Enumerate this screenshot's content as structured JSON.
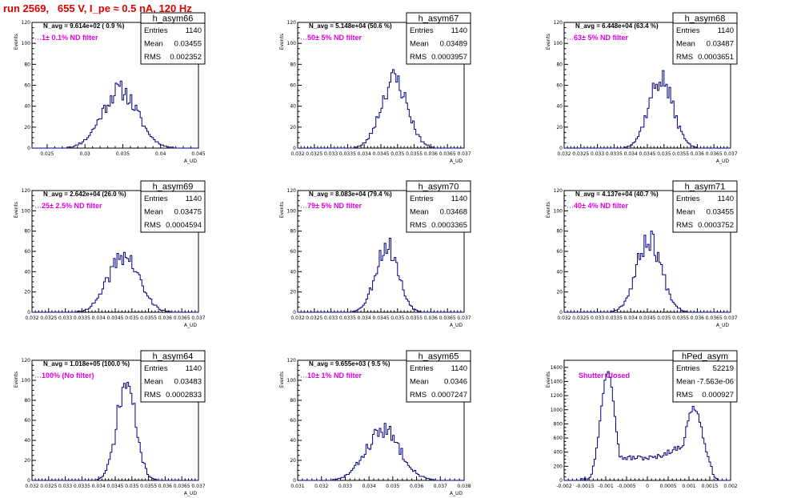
{
  "header": {
    "title": "run 2569,   655 V, I_pe ≈ 0.5 nA, 120 Hz"
  },
  "colors": {
    "histogram": "#000080",
    "title": "#e00000",
    "filter_label": "#e000e0"
  },
  "chart_data": [
    {
      "type": "histogram",
      "name": "h_asym66",
      "ylabel": "Events",
      "xlabel": "A_UD",
      "ylim": [
        0,
        120
      ],
      "yticks": [
        0,
        20,
        40,
        60,
        80,
        100,
        120
      ],
      "xlim": [
        0.023,
        0.045
      ],
      "xticks": [
        0.025,
        0.03,
        0.035,
        0.04,
        0.045
      ],
      "xtick_labels": [
        "0.025",
        "0.03",
        "0.035",
        "0.04",
        "0.045"
      ],
      "annotation_navg": "N_avg = 9.614e+02 ( 0.9 %)",
      "annotation_filter": "1± 0.1% ND filter",
      "stats": {
        "entries": "1140",
        "mean": "0.03455",
        "rms": "0.002352"
      },
      "peak_x": 0.0346,
      "width": 0.00235,
      "peak_y": 55,
      "seed": 11
    },
    {
      "type": "histogram",
      "name": "h_asym67",
      "ylabel": "Events",
      "xlabel": "A_UD",
      "ylim": [
        0,
        120
      ],
      "yticks": [
        0,
        20,
        40,
        60,
        80,
        100,
        120
      ],
      "xlim": [
        0.032,
        0.037
      ],
      "xticks": [
        0.032,
        0.0325,
        0.033,
        0.0335,
        0.034,
        0.0345,
        0.035,
        0.0355,
        0.036,
        0.0365,
        0.037
      ],
      "xtick_labels": [
        "0.032",
        "0.0325",
        "0.033",
        "0.0335",
        "0.034",
        "0.0345",
        "0.035",
        "0.0355",
        "0.036",
        "0.0365",
        "0.037"
      ],
      "annotation_navg": "N_avg = 5.148e+04 (50.6 %)",
      "annotation_filter": "50± 5% ND filter",
      "stats": {
        "entries": "1140",
        "mean": "0.03489",
        "rms": "0.0003957"
      },
      "peak_x": 0.0349,
      "width": 0.000396,
      "peak_y": 66,
      "seed": 23
    },
    {
      "type": "histogram",
      "name": "h_asym68",
      "ylabel": "Events",
      "xlabel": "A_UD",
      "ylim": [
        0,
        120
      ],
      "yticks": [
        0,
        20,
        40,
        60,
        80,
        100,
        120
      ],
      "xlim": [
        0.032,
        0.037
      ],
      "xticks": [
        0.032,
        0.0325,
        0.033,
        0.0335,
        0.034,
        0.0345,
        0.035,
        0.0355,
        0.036,
        0.0365,
        0.037
      ],
      "xtick_labels": [
        "0.032",
        "0.0325",
        "0.033",
        "0.0335",
        "0.034",
        "0.0345",
        "0.035",
        "0.0355",
        "0.036",
        "0.0365",
        "0.037"
      ],
      "annotation_navg": "N_avg = 6.448e+04 (63.4 %)",
      "annotation_filter": "63± 5% ND filter",
      "stats": {
        "entries": "1140",
        "mean": "0.03487",
        "rms": "0.0003651"
      },
      "peak_x": 0.0349,
      "width": 0.000365,
      "peak_y": 66,
      "seed": 37
    },
    {
      "type": "histogram",
      "name": "h_asym69",
      "ylabel": "Events",
      "xlabel": "A_UD",
      "ylim": [
        0,
        120
      ],
      "yticks": [
        0,
        20,
        40,
        60,
        80,
        100,
        120
      ],
      "xlim": [
        0.032,
        0.037
      ],
      "xticks": [
        0.032,
        0.0325,
        0.033,
        0.0335,
        0.034,
        0.0345,
        0.035,
        0.0355,
        0.036,
        0.0365,
        0.037
      ],
      "xtick_labels": [
        "0.032",
        "0.0325",
        "0.033",
        "0.0335",
        "0.034",
        "0.0345",
        "0.035",
        "0.0355",
        "0.036",
        "0.0365",
        "0.037"
      ],
      "annotation_navg": "N_avg = 2.642e+04 (26.0 %)",
      "annotation_filter": "25± 2.5% ND filter",
      "stats": {
        "entries": "1140",
        "mean": "0.03475",
        "rms": "0.0004594"
      },
      "peak_x": 0.03475,
      "width": 0.00046,
      "peak_y": 56,
      "seed": 41
    },
    {
      "type": "histogram",
      "name": "h_asym70",
      "ylabel": "Events",
      "xlabel": "A_UD",
      "ylim": [
        0,
        120
      ],
      "yticks": [
        0,
        20,
        40,
        60,
        80,
        100,
        120
      ],
      "xlim": [
        0.032,
        0.037
      ],
      "xticks": [
        0.032,
        0.0325,
        0.033,
        0.0335,
        0.034,
        0.0345,
        0.035,
        0.0355,
        0.036,
        0.0365,
        0.037
      ],
      "xtick_labels": [
        "0.032",
        "0.0325",
        "0.033",
        "0.0335",
        "0.034",
        "0.0345",
        "0.035",
        "0.0355",
        "0.036",
        "0.0365",
        "0.037"
      ],
      "annotation_navg": "N_avg = 8.083e+04 (79.4 %)",
      "annotation_filter": "79± 5% ND filter",
      "stats": {
        "entries": "1140",
        "mean": "0.03468",
        "rms": "0.0003365"
      },
      "peak_x": 0.03468,
      "width": 0.000336,
      "peak_y": 66,
      "seed": 53
    },
    {
      "type": "histogram",
      "name": "h_asym71",
      "ylabel": "Events",
      "xlabel": "A_UD",
      "ylim": [
        0,
        120
      ],
      "yticks": [
        0,
        20,
        40,
        60,
        80,
        100,
        120
      ],
      "xlim": [
        0.032,
        0.037
      ],
      "xticks": [
        0.032,
        0.0325,
        0.033,
        0.0335,
        0.034,
        0.0345,
        0.035,
        0.0355,
        0.036,
        0.0365,
        0.037
      ],
      "xtick_labels": [
        "0.032",
        "0.0325",
        "0.033",
        "0.0335",
        "0.034",
        "0.0345",
        "0.035",
        "0.0355",
        "0.036",
        "0.0365",
        "0.037"
      ],
      "annotation_navg": "N_avg = 4.137e+04 (40.7 %)",
      "annotation_filter": "40± 4% ND filter",
      "stats": {
        "entries": "1140",
        "mean": "0.03455",
        "rms": "0.0003752"
      },
      "peak_x": 0.03455,
      "width": 0.000375,
      "peak_y": 72,
      "seed": 67
    },
    {
      "type": "histogram",
      "name": "h_asym64",
      "ylabel": "Events",
      "xlabel": "A_UD",
      "ylim": [
        0,
        120
      ],
      "yticks": [
        0,
        20,
        40,
        60,
        80,
        100,
        120
      ],
      "xlim": [
        0.032,
        0.037
      ],
      "xticks": [
        0.032,
        0.0325,
        0.033,
        0.0335,
        0.034,
        0.0345,
        0.035,
        0.0355,
        0.036,
        0.0365,
        0.037
      ],
      "xtick_labels": [
        "0.032",
        "0.0325",
        "0.033",
        "0.0335",
        "0.034",
        "0.0345",
        "0.035",
        "0.0355",
        "0.036",
        "0.0365",
        "0.037"
      ],
      "annotation_navg": "N_avg = 1.018e+05 (100.0 %)",
      "annotation_filter": "100% (No filter)",
      "stats": {
        "entries": "1140",
        "mean": "0.03483",
        "rms": "0.0002833"
      },
      "peak_x": 0.03483,
      "width": 0.000283,
      "peak_y": 96,
      "seed": 71
    },
    {
      "type": "histogram",
      "name": "h_asym65",
      "ylabel": "Events",
      "xlabel": "A_UD",
      "ylim": [
        0,
        120
      ],
      "yticks": [
        0,
        20,
        40,
        60,
        80,
        100,
        120
      ],
      "xlim": [
        0.031,
        0.038
      ],
      "xticks": [
        0.031,
        0.032,
        0.033,
        0.034,
        0.035,
        0.036,
        0.037,
        0.038
      ],
      "xtick_labels": [
        "0.031",
        "0.032",
        "0.033",
        "0.034",
        "0.035",
        "0.036",
        "0.037",
        "0.038"
      ],
      "annotation_navg": "N_avg = 9.655e+03 ( 9.5 %)",
      "annotation_filter": "10± 1% ND filter",
      "stats": {
        "entries": "1140",
        "mean": "0.0346",
        "rms": "0.0007247"
      },
      "peak_x": 0.0346,
      "width": 0.000725,
      "peak_y": 50,
      "seed": 83
    },
    {
      "type": "histogram",
      "name": "hPed_asym",
      "ylabel": "Events",
      "xlabel": "",
      "ylim": [
        0,
        1700
      ],
      "yticks": [
        0,
        200,
        400,
        600,
        800,
        1000,
        1200,
        1400,
        1600
      ],
      "xlim": [
        -0.002,
        0.002
      ],
      "xticks": [
        -0.002,
        -0.0015,
        -0.001,
        -0.0005,
        0,
        0.0005,
        0.001,
        0.0015,
        0.002
      ],
      "xtick_labels": [
        "-0.002",
        "-0.0015",
        "-0.001",
        "-0.0005",
        "0",
        "0.0005",
        "0.001",
        "0.0015",
        "0.002"
      ],
      "annotation_navg": "",
      "annotation_filter": "Shutter Closed",
      "stats": {
        "entries": "52219",
        "mean": "-7.563e-06",
        "rms": "0.000927"
      },
      "bimodal": true,
      "seed": 97
    }
  ]
}
